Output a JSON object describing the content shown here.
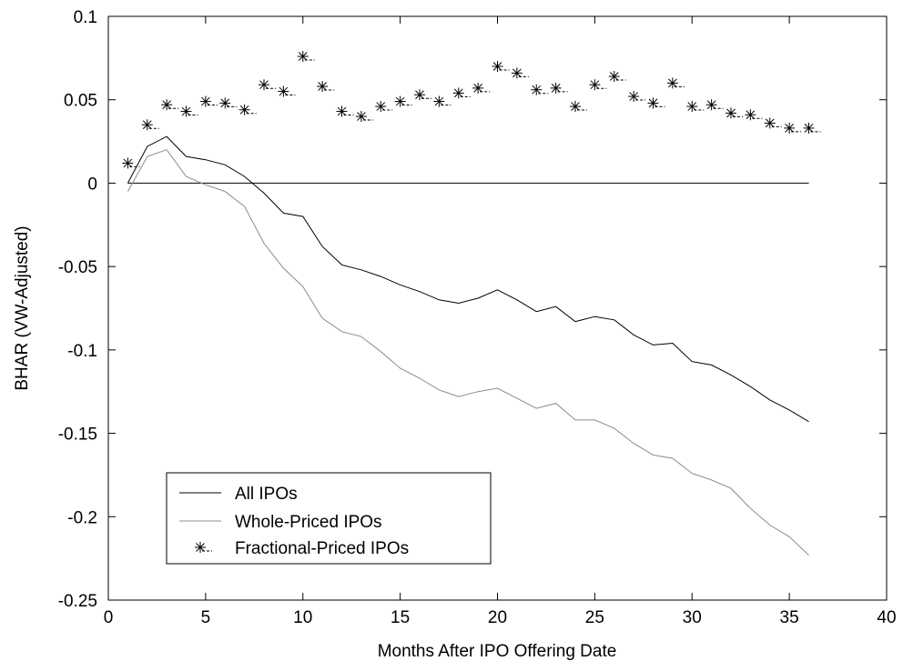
{
  "chart_data": {
    "type": "line",
    "title": "",
    "xlabel": "Months After IPO Offering Date",
    "ylabel": "BHAR (VW-Adjusted)",
    "xlim": [
      0,
      40
    ],
    "ylim": [
      -0.25,
      0.1
    ],
    "xticks": [
      0,
      5,
      10,
      15,
      20,
      25,
      30,
      35,
      40
    ],
    "yticks": [
      -0.25,
      -0.2,
      -0.15,
      -0.1,
      -0.05,
      0,
      0.05,
      0.1
    ],
    "xtick_labels": [
      "0",
      "5",
      "10",
      "15",
      "20",
      "25",
      "30",
      "35",
      "40"
    ],
    "ytick_labels": [
      "-0.25",
      "-0.2",
      "-0.15",
      "-0.1",
      "-0.05",
      "0",
      "0.05",
      "0.1"
    ],
    "grid": false,
    "legend_position": "bottom-left",
    "reference_line": {
      "y": 0,
      "x_range": [
        1,
        36
      ]
    },
    "x": [
      1,
      2,
      3,
      4,
      5,
      6,
      7,
      8,
      9,
      10,
      11,
      12,
      13,
      14,
      15,
      16,
      17,
      18,
      19,
      20,
      21,
      22,
      23,
      24,
      25,
      26,
      27,
      28,
      29,
      30,
      31,
      32,
      33,
      34,
      35,
      36
    ],
    "series": [
      {
        "name": "All IPOs",
        "style": "line",
        "color": "#000000",
        "values": [
          0.0,
          0.022,
          0.028,
          0.016,
          0.014,
          0.011,
          0.004,
          -0.006,
          -0.018,
          -0.02,
          -0.038,
          -0.049,
          -0.052,
          -0.056,
          -0.061,
          -0.065,
          -0.07,
          -0.072,
          -0.069,
          -0.064,
          -0.07,
          -0.077,
          -0.074,
          -0.083,
          -0.08,
          -0.082,
          -0.091,
          -0.097,
          -0.096,
          -0.107,
          -0.109,
          -0.115,
          -0.122,
          -0.13,
          -0.136,
          -0.143
        ]
      },
      {
        "name": "Whole-Priced IPOs",
        "style": "line",
        "color": "#8c8c8c",
        "values": [
          -0.005,
          0.016,
          0.02,
          0.004,
          -0.001,
          -0.005,
          -0.014,
          -0.036,
          -0.051,
          -0.062,
          -0.081,
          -0.089,
          -0.092,
          -0.101,
          -0.111,
          -0.117,
          -0.124,
          -0.128,
          -0.125,
          -0.123,
          -0.129,
          -0.135,
          -0.132,
          -0.142,
          -0.142,
          -0.147,
          -0.156,
          -0.163,
          -0.165,
          -0.174,
          -0.178,
          -0.183,
          -0.195,
          -0.205,
          -0.212,
          -0.223
        ]
      },
      {
        "name": "Fractional-Priced IPOs",
        "style": "marker",
        "color": "#000000",
        "values": [
          0.012,
          0.035,
          0.047,
          0.043,
          0.049,
          0.048,
          0.044,
          0.059,
          0.055,
          0.076,
          0.058,
          0.043,
          0.04,
          0.046,
          0.049,
          0.053,
          0.049,
          0.054,
          0.057,
          0.07,
          0.066,
          0.056,
          0.057,
          0.046,
          0.059,
          0.064,
          0.052,
          0.048,
          0.06,
          0.046,
          0.047,
          0.042,
          0.041,
          0.036,
          0.033,
          0.033
        ]
      }
    ]
  }
}
